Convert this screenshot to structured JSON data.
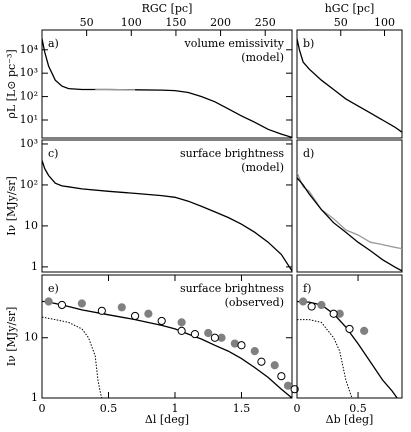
{
  "chart_data": [
    {
      "type": "line",
      "panel_label": "a)",
      "notes": [
        "volume emissivity",
        "(model)"
      ],
      "ylabel": "ρL [L⊙ pc⁻³]",
      "log_y": true,
      "xlim": [
        0,
        1.88
      ],
      "ylim": [
        1.7,
        70000
      ],
      "yticks": [
        {
          "value": 10,
          "label": "10¹"
        },
        {
          "value": 100,
          "label": "10²"
        },
        {
          "value": 1000,
          "label": "10³"
        },
        {
          "value": 10000,
          "label": "10⁴"
        }
      ],
      "x2label": "RGC [pc]",
      "x2lim": [
        0,
        280
      ],
      "x2ticks": [
        50,
        100,
        150,
        200,
        250
      ],
      "series": [
        {
          "style": "solid",
          "color": "#000000",
          "x": [
            0,
            0.02,
            0.05,
            0.1,
            0.15,
            0.2,
            0.3,
            0.5,
            0.7,
            0.9,
            1.0,
            1.1,
            1.2,
            1.3,
            1.4,
            1.5,
            1.6,
            1.7,
            1.8,
            1.88
          ],
          "values": [
            30000,
            8000,
            2000,
            500,
            280,
            220,
            200,
            200,
            195,
            190,
            180,
            150,
            100,
            60,
            30,
            15,
            8,
            4,
            2.5,
            1.8
          ]
        },
        {
          "style": "solid",
          "color": "#999999",
          "x": [
            0.4,
            0.5,
            0.6,
            0.7
          ],
          "values": [
            200,
            200,
            197,
            195
          ]
        }
      ]
    },
    {
      "type": "line",
      "panel_label": "b)",
      "log_y": true,
      "xlim": [
        0,
        0.86
      ],
      "ylim": [
        1.7,
        70000
      ],
      "x2label": "hGC [pc]",
      "x2lim": [
        0,
        120
      ],
      "x2ticks": [
        50,
        100
      ],
      "series": [
        {
          "style": "solid",
          "color": "#000000",
          "x": [
            0,
            0.02,
            0.05,
            0.1,
            0.2,
            0.3,
            0.4,
            0.5,
            0.6,
            0.7,
            0.8,
            0.86
          ],
          "values": [
            30000,
            10000,
            3000,
            1500,
            500,
            200,
            80,
            40,
            20,
            10,
            5,
            3
          ]
        }
      ]
    },
    {
      "type": "line",
      "panel_label": "c)",
      "notes": [
        "surface brightness",
        "(model)"
      ],
      "ylabel": "Iν [MJy/sr]",
      "log_y": true,
      "xlim": [
        0,
        1.88
      ],
      "ylim": [
        0.75,
        1250
      ],
      "yticks": [
        1,
        10,
        {
          "value": 100,
          "label": "10²"
        },
        {
          "value": 1000,
          "label": "10³"
        }
      ],
      "series": [
        {
          "style": "solid",
          "color": "#000000",
          "x": [
            0,
            0.02,
            0.05,
            0.1,
            0.15,
            0.2,
            0.3,
            0.5,
            0.7,
            0.9,
            1.0,
            1.1,
            1.2,
            1.3,
            1.4,
            1.5,
            1.6,
            1.7,
            1.8,
            1.88
          ],
          "values": [
            400,
            250,
            170,
            110,
            95,
            90,
            80,
            70,
            62,
            55,
            50,
            40,
            30,
            22,
            16,
            11,
            7,
            4,
            2,
            0.8
          ]
        }
      ]
    },
    {
      "type": "line",
      "panel_label": "d)",
      "log_y": true,
      "xlim": [
        0,
        0.86
      ],
      "ylim": [
        0.75,
        1250
      ],
      "series": [
        {
          "style": "solid",
          "color": "#999999",
          "x": [
            0,
            0.05,
            0.1,
            0.2,
            0.3,
            0.4,
            0.5,
            0.6,
            0.7,
            0.8,
            0.86
          ],
          "values": [
            200,
            90,
            70,
            25,
            15,
            8,
            6,
            4,
            3.5,
            3,
            2.8
          ]
        },
        {
          "style": "solid",
          "color": "#000000",
          "x": [
            0,
            0.05,
            0.1,
            0.2,
            0.3,
            0.4,
            0.5,
            0.6,
            0.7,
            0.8,
            0.86
          ],
          "values": [
            150,
            100,
            60,
            25,
            12,
            7,
            4,
            2.5,
            1.5,
            1,
            0.8
          ]
        }
      ]
    },
    {
      "type": "line",
      "panel_label": "e)",
      "notes": [
        "surface brightness",
        "(observed)"
      ],
      "ylabel": "Iν [MJy/sr]",
      "log_y": true,
      "xlim": [
        0,
        1.88
      ],
      "ylim": [
        1,
        110
      ],
      "yticks": [
        1,
        10
      ],
      "xlabel": "Δl [deg]",
      "xticks": [
        0,
        0.5,
        1,
        1.5
      ],
      "series": [
        {
          "style": "solid",
          "color": "#000000",
          "x": [
            0,
            0.02,
            0.05,
            0.1,
            0.15,
            0.2,
            0.3,
            0.5,
            0.7,
            0.9,
            1.0,
            1.1,
            1.2,
            1.3,
            1.4,
            1.5,
            1.6,
            1.7,
            1.8,
            1.88
          ],
          "values": [
            40,
            40,
            39,
            37,
            35,
            33,
            29,
            24,
            20,
            16,
            14,
            11.5,
            9.5,
            7.5,
            6,
            4.5,
            3.2,
            2.2,
            1.4,
            1
          ]
        },
        {
          "style": "dotted",
          "color": "#000000",
          "x": [
            0,
            0.1,
            0.2,
            0.3,
            0.35,
            0.4,
            0.42,
            0.44,
            0.45
          ],
          "values": [
            22,
            20,
            18,
            14,
            10,
            5,
            2,
            1.2,
            1
          ]
        },
        {
          "style": "filled",
          "color": "#808080",
          "x": [
            0.05,
            0.3,
            0.6,
            0.8,
            1.05,
            1.25,
            1.35,
            1.45,
            1.6,
            1.75,
            1.85
          ],
          "values": [
            40,
            37,
            32,
            25,
            18,
            12,
            10,
            8,
            6,
            3.5,
            1.6
          ]
        },
        {
          "style": "open",
          "color": "#000000",
          "x": [
            0.15,
            0.45,
            0.7,
            0.9,
            1.05,
            1.15,
            1.3,
            1.5,
            1.65,
            1.8,
            1.9
          ],
          "values": [
            35,
            28,
            23,
            19,
            13,
            11.5,
            10,
            7.5,
            4,
            2.3,
            1.4
          ]
        }
      ]
    },
    {
      "type": "line",
      "panel_label": "f)",
      "log_y": true,
      "xlim": [
        0,
        0.86
      ],
      "ylim": [
        1,
        110
      ],
      "xlabel": "Δb [deg]",
      "xticks": [
        0,
        0.5
      ],
      "series": [
        {
          "style": "solid",
          "color": "#000000",
          "x": [
            0,
            0.1,
            0.2,
            0.3,
            0.4,
            0.5,
            0.6,
            0.7,
            0.78,
            0.82
          ],
          "values": [
            40,
            39,
            35,
            25,
            15,
            8,
            4,
            2,
            1.3,
            1
          ]
        },
        {
          "style": "dotted",
          "color": "#000000",
          "x": [
            0,
            0.1,
            0.2,
            0.3,
            0.35,
            0.4,
            0.45
          ],
          "values": [
            20,
            20,
            18,
            10,
            6,
            2,
            1
          ]
        },
        {
          "style": "filled",
          "color": "#808080",
          "x": [
            0.05,
            0.2,
            0.35,
            0.55
          ],
          "values": [
            40,
            35,
            25,
            13
          ]
        },
        {
          "style": "open",
          "color": "#000000",
          "x": [
            0.12,
            0.3,
            0.43
          ],
          "values": [
            33,
            25,
            14
          ]
        }
      ]
    }
  ]
}
